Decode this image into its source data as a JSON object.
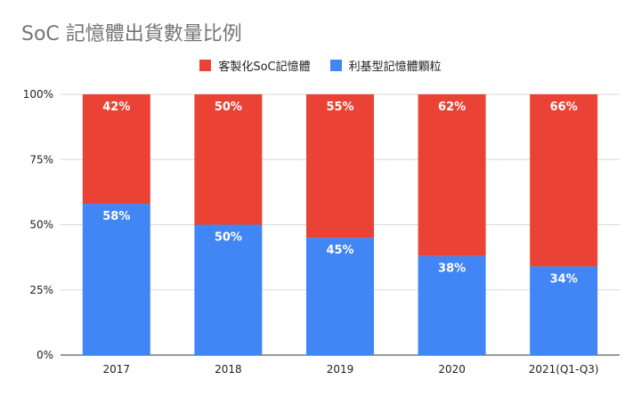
{
  "chart_data": {
    "type": "bar",
    "stacked": true,
    "title": "SoC 記憶體出貨數量比例",
    "categories": [
      "2017",
      "2018",
      "2019",
      "2020",
      "2021(Q1-Q3)"
    ],
    "series": [
      {
        "name": "利基型記憶體顆粒",
        "color": "#4285f4",
        "values": [
          58,
          50,
          45,
          38,
          34
        ],
        "labels": [
          "58%",
          "50%",
          "45%",
          "38%",
          "34%"
        ]
      },
      {
        "name": "客製化SoC記憶體",
        "color": "#ea4335",
        "values": [
          42,
          50,
          55,
          62,
          66
        ],
        "labels": [
          "42%",
          "50%",
          "55%",
          "62%",
          "66%"
        ]
      }
    ],
    "ylim": [
      0,
      100
    ],
    "yticks": [
      "0%",
      "25%",
      "50%",
      "75%",
      "100%"
    ],
    "grid": true,
    "legend_position": "top"
  }
}
